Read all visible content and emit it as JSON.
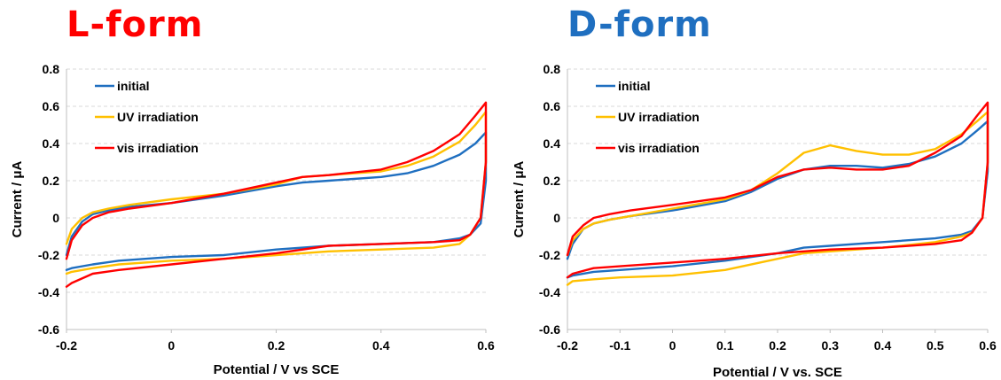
{
  "colors": {
    "initial": "#1f6fc0",
    "uv": "#ffc000",
    "vis": "#ff0000",
    "title_l": "#ff0000",
    "title_d": "#1f6fc0",
    "grid": "#d9d9d9"
  },
  "chart_data": [
    {
      "type": "line",
      "title": "L-form",
      "xlabel": "Potential / V vs SCE",
      "ylabel": "Current / μA",
      "xlim": [
        -0.2,
        0.6
      ],
      "ylim": [
        -0.6,
        0.8
      ],
      "xticks": [
        -0.2,
        0,
        0.2,
        0.4,
        0.6
      ],
      "xtick_labels": [
        "-0.2",
        "0",
        "0.2",
        "0.4",
        "0.6"
      ],
      "yticks": [
        -0.6,
        -0.4,
        -0.2,
        0,
        0.2,
        0.4,
        0.6,
        0.8
      ],
      "ytick_labels": [
        "-0.6",
        "-0.4",
        "-0.2",
        "0",
        "0.2",
        "0.4",
        "0.6",
        "0.8"
      ],
      "grid": "horizontal dashed",
      "legend_position": "top-left",
      "series": [
        {
          "name": "initial",
          "color_key": "initial",
          "x": [
            -0.2,
            -0.19,
            -0.17,
            -0.15,
            -0.12,
            -0.08,
            0.0,
            0.1,
            0.2,
            0.25,
            0.3,
            0.4,
            0.45,
            0.5,
            0.55,
            0.58,
            0.6,
            0.6,
            0.59,
            0.57,
            0.55,
            0.5,
            0.4,
            0.3,
            0.2,
            0.1,
            0.0,
            -0.1,
            -0.15,
            -0.19,
            -0.2
          ],
          "y": [
            -0.2,
            -0.1,
            -0.02,
            0.02,
            0.04,
            0.06,
            0.08,
            0.12,
            0.17,
            0.19,
            0.2,
            0.22,
            0.24,
            0.28,
            0.34,
            0.4,
            0.46,
            0.2,
            -0.03,
            -0.09,
            -0.11,
            -0.13,
            -0.14,
            -0.15,
            -0.17,
            -0.2,
            -0.21,
            -0.23,
            -0.25,
            -0.27,
            -0.28
          ]
        },
        {
          "name": "UV irradiation",
          "color_key": "uv",
          "x": [
            -0.2,
            -0.19,
            -0.17,
            -0.15,
            -0.12,
            -0.08,
            0.0,
            0.1,
            0.2,
            0.25,
            0.3,
            0.4,
            0.45,
            0.5,
            0.55,
            0.58,
            0.6,
            0.6,
            0.59,
            0.57,
            0.55,
            0.5,
            0.4,
            0.3,
            0.2,
            0.1,
            0.0,
            -0.1,
            -0.15,
            -0.19,
            -0.2
          ],
          "y": [
            -0.14,
            -0.06,
            0.0,
            0.03,
            0.05,
            0.07,
            0.1,
            0.13,
            0.18,
            0.22,
            0.23,
            0.25,
            0.28,
            0.33,
            0.41,
            0.5,
            0.57,
            0.3,
            0.0,
            -0.09,
            -0.14,
            -0.16,
            -0.17,
            -0.18,
            -0.2,
            -0.22,
            -0.23,
            -0.25,
            -0.27,
            -0.29,
            -0.3
          ]
        },
        {
          "name": "vis irradiation",
          "color_key": "vis",
          "x": [
            -0.2,
            -0.19,
            -0.17,
            -0.15,
            -0.12,
            -0.08,
            0.0,
            0.1,
            0.2,
            0.25,
            0.3,
            0.4,
            0.45,
            0.5,
            0.55,
            0.58,
            0.6,
            0.6,
            0.59,
            0.57,
            0.55,
            0.5,
            0.4,
            0.3,
            0.2,
            0.1,
            0.0,
            -0.1,
            -0.15,
            -0.19,
            -0.2
          ],
          "y": [
            -0.22,
            -0.12,
            -0.04,
            0.0,
            0.03,
            0.05,
            0.08,
            0.13,
            0.19,
            0.22,
            0.23,
            0.26,
            0.3,
            0.36,
            0.45,
            0.55,
            0.62,
            0.3,
            0.0,
            -0.09,
            -0.12,
            -0.13,
            -0.14,
            -0.15,
            -0.19,
            -0.22,
            -0.25,
            -0.28,
            -0.3,
            -0.35,
            -0.37
          ]
        }
      ]
    },
    {
      "type": "line",
      "title": "D-form",
      "xlabel": "Potential / V vs. SCE",
      "ylabel": "Current / μA",
      "xlim": [
        -0.2,
        0.6
      ],
      "ylim": [
        -0.6,
        0.8
      ],
      "xticks": [
        -0.2,
        -0.1,
        0,
        0.1,
        0.2,
        0.3,
        0.4,
        0.5,
        0.6
      ],
      "xtick_labels": [
        "-0.2",
        "-0.1",
        "0",
        "0.1",
        "0.2",
        "0.3",
        "0.4",
        "0.5",
        "0.6"
      ],
      "yticks": [
        -0.6,
        -0.4,
        -0.2,
        0,
        0.2,
        0.4,
        0.6,
        0.8
      ],
      "ytick_labels": [
        "-0.6",
        "-0.4",
        "-0.2",
        "0",
        "0.2",
        "0.4",
        "0.6",
        "0.8"
      ],
      "grid": "horizontal dashed",
      "legend_position": "top-left",
      "series": [
        {
          "name": "initial",
          "color_key": "initial",
          "x": [
            -0.2,
            -0.19,
            -0.17,
            -0.15,
            -0.12,
            -0.08,
            0.0,
            0.1,
            0.15,
            0.2,
            0.25,
            0.3,
            0.35,
            0.4,
            0.45,
            0.5,
            0.55,
            0.58,
            0.6,
            0.6,
            0.59,
            0.57,
            0.55,
            0.5,
            0.4,
            0.3,
            0.25,
            0.2,
            0.1,
            0.0,
            -0.1,
            -0.15,
            -0.19,
            -0.2
          ],
          "y": [
            -0.22,
            -0.14,
            -0.06,
            -0.03,
            -0.01,
            0.01,
            0.04,
            0.09,
            0.14,
            0.21,
            0.26,
            0.28,
            0.28,
            0.27,
            0.29,
            0.33,
            0.4,
            0.47,
            0.52,
            0.25,
            0.0,
            -0.07,
            -0.09,
            -0.11,
            -0.13,
            -0.15,
            -0.16,
            -0.19,
            -0.23,
            -0.26,
            -0.28,
            -0.29,
            -0.31,
            -0.32
          ]
        },
        {
          "name": "UV irradiation",
          "color_key": "uv",
          "x": [
            -0.2,
            -0.19,
            -0.17,
            -0.15,
            -0.12,
            -0.08,
            0.0,
            0.1,
            0.15,
            0.2,
            0.25,
            0.3,
            0.35,
            0.4,
            0.45,
            0.5,
            0.55,
            0.58,
            0.6,
            0.6,
            0.59,
            0.57,
            0.55,
            0.5,
            0.4,
            0.3,
            0.25,
            0.2,
            0.1,
            0.0,
            -0.1,
            -0.15,
            -0.19,
            -0.2
          ],
          "y": [
            -0.2,
            -0.12,
            -0.06,
            -0.03,
            -0.01,
            0.01,
            0.05,
            0.1,
            0.15,
            0.24,
            0.35,
            0.39,
            0.36,
            0.34,
            0.34,
            0.37,
            0.45,
            0.52,
            0.57,
            0.3,
            0.0,
            -0.08,
            -0.1,
            -0.13,
            -0.16,
            -0.18,
            -0.19,
            -0.22,
            -0.28,
            -0.31,
            -0.32,
            -0.33,
            -0.34,
            -0.36
          ]
        },
        {
          "name": "vis irradiation",
          "color_key": "vis",
          "x": [
            -0.2,
            -0.19,
            -0.17,
            -0.15,
            -0.12,
            -0.08,
            0.0,
            0.1,
            0.15,
            0.2,
            0.25,
            0.3,
            0.35,
            0.4,
            0.45,
            0.5,
            0.55,
            0.58,
            0.6,
            0.6,
            0.59,
            0.57,
            0.55,
            0.5,
            0.4,
            0.3,
            0.25,
            0.2,
            0.1,
            0.0,
            -0.1,
            -0.15,
            -0.19,
            -0.2
          ],
          "y": [
            -0.2,
            -0.1,
            -0.04,
            0.0,
            0.02,
            0.04,
            0.07,
            0.11,
            0.15,
            0.22,
            0.26,
            0.27,
            0.26,
            0.26,
            0.28,
            0.35,
            0.44,
            0.55,
            0.62,
            0.3,
            0.0,
            -0.08,
            -0.12,
            -0.14,
            -0.16,
            -0.17,
            -0.18,
            -0.19,
            -0.22,
            -0.24,
            -0.26,
            -0.27,
            -0.3,
            -0.32
          ]
        }
      ]
    }
  ]
}
